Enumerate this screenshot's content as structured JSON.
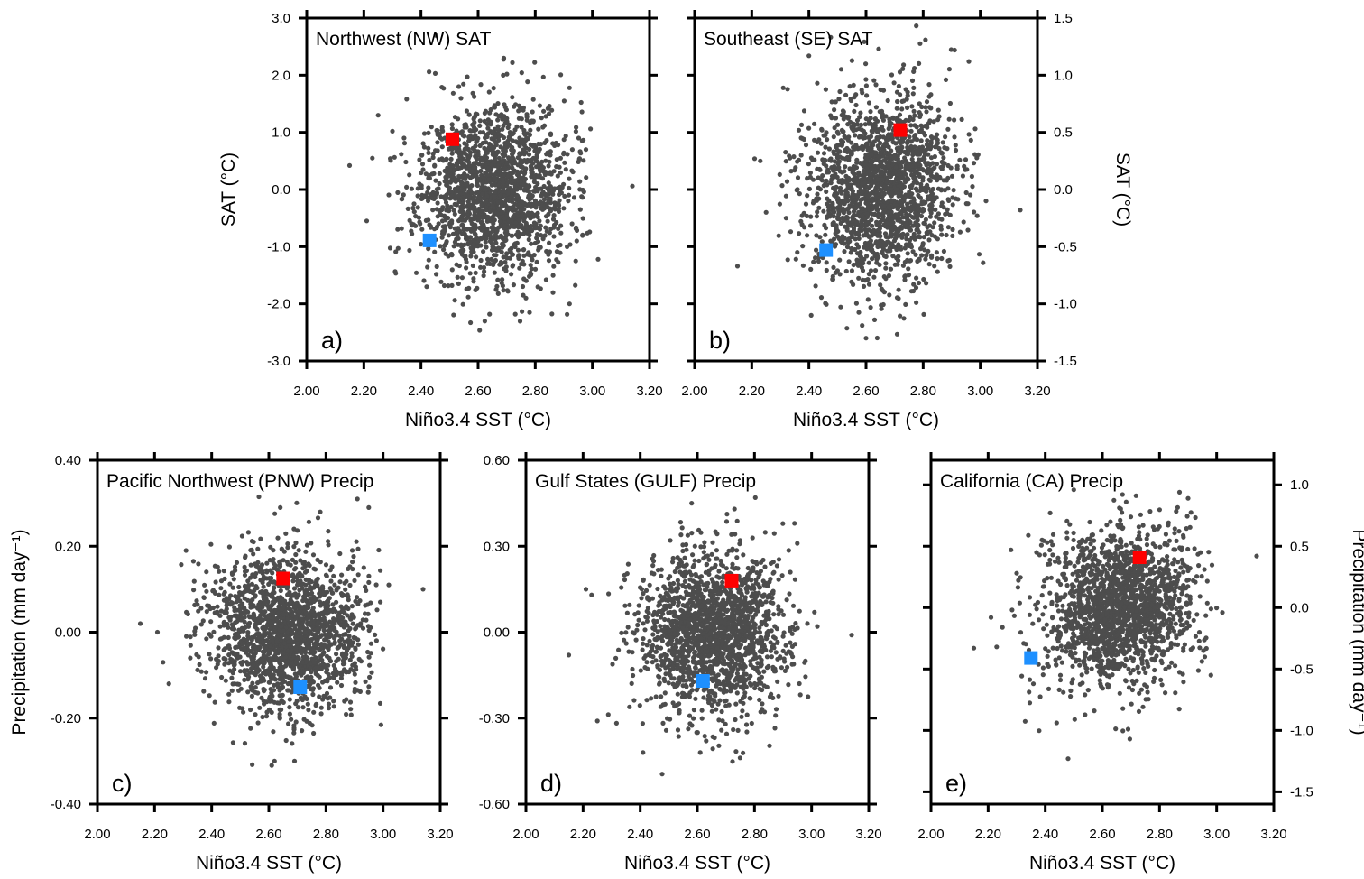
{
  "figure": {
    "description": "Scatter plots of seasonal anomalies vs Niño3.4 SST with two highlighted members",
    "highlight_colors": {
      "red": "#ff0000",
      "blue": "#1e90ff"
    },
    "point_color": "#4d4d4d"
  },
  "chart_data": [
    {
      "id": "a",
      "type": "scatter",
      "title": "Northwest (NW) SAT",
      "panel_letter": "a)",
      "xlabel": "Niño3.4 SST (°C)",
      "ylabel": "SAT (°C)",
      "ylabel_side": "left",
      "xlim": [
        2.0,
        3.2
      ],
      "ylim": [
        -3.0,
        3.0
      ],
      "xticks": [
        "2.00",
        "2.20",
        "2.40",
        "2.60",
        "2.80",
        "3.00",
        "3.20"
      ],
      "yticks": [
        {
          "v": 3.0,
          "label": "3.0"
        },
        {
          "v": 2.0,
          "label": "2.0"
        },
        {
          "v": 1.0,
          "label": "1.0"
        },
        {
          "v": 0.0,
          "label": "0.0"
        },
        {
          "v": -1.0,
          "label": "-1.0"
        },
        {
          "v": -2.0,
          "label": "-2.0"
        },
        {
          "v": -3.0,
          "label": "-3.0"
        }
      ],
      "cloud": {
        "n": 1800,
        "x_mean": 2.66,
        "x_sd": 0.13,
        "y_mean": -0.05,
        "y_sd": 0.75,
        "corr": 0.05,
        "seed": 11
      },
      "outliers": [
        [
          2.15,
          0.42
        ],
        [
          2.21,
          -0.55
        ],
        [
          2.23,
          0.55
        ],
        [
          2.25,
          1.3
        ],
        [
          2.3,
          1.02
        ],
        [
          2.32,
          -1.03
        ],
        [
          2.35,
          1.58
        ],
        [
          3.14,
          0.06
        ],
        [
          3.02,
          -1.22
        ],
        [
          2.92,
          -2.0
        ],
        [
          2.64,
          -2.18
        ],
        [
          2.73,
          -2.18
        ],
        [
          2.78,
          -2.15
        ],
        [
          2.69,
          2.3
        ],
        [
          2.72,
          2.22
        ],
        [
          2.45,
          2.03
        ],
        [
          2.42,
          -1.7
        ],
        [
          2.92,
          1.78
        ]
      ],
      "highlights": [
        {
          "name": "red-member",
          "color": "red",
          "x": 2.51,
          "y": 0.88
        },
        {
          "name": "blue-member",
          "color": "blue",
          "x": 2.43,
          "y": -0.89
        }
      ]
    },
    {
      "id": "b",
      "type": "scatter",
      "title": "Southeast (SE) SAT",
      "panel_letter": "b)",
      "xlabel": "Niño3.4 SST (°C)",
      "ylabel": "SAT (°C)",
      "ylabel_side": "right",
      "xlim": [
        2.0,
        3.2
      ],
      "ylim": [
        -1.5,
        1.5
      ],
      "xticks": [
        "2.00",
        "2.20",
        "2.40",
        "2.60",
        "2.80",
        "3.00",
        "3.20"
      ],
      "yticks": [
        {
          "v": 1.5,
          "label": "1.5"
        },
        {
          "v": 1.0,
          "label": "1.0"
        },
        {
          "v": 0.5,
          "label": "0.5"
        },
        {
          "v": 0.0,
          "label": "0.0"
        },
        {
          "v": -0.5,
          "label": "-0.5"
        },
        {
          "v": -1.0,
          "label": "-1.0"
        },
        {
          "v": -1.5,
          "label": "-1.5"
        }
      ],
      "cloud": {
        "n": 1800,
        "x_mean": 2.65,
        "x_sd": 0.13,
        "y_mean": 0.0,
        "y_sd": 0.4,
        "corr": 0.02,
        "seed": 23
      },
      "outliers": [
        [
          2.15,
          -0.67
        ],
        [
          2.21,
          0.27
        ],
        [
          2.23,
          0.25
        ],
        [
          2.25,
          -0.2
        ],
        [
          3.14,
          -0.18
        ],
        [
          3.01,
          -0.64
        ],
        [
          3.02,
          -0.1
        ],
        [
          2.6,
          -1.3
        ],
        [
          2.63,
          -1.14
        ],
        [
          2.91,
          1.22
        ],
        [
          2.96,
          1.12
        ],
        [
          2.4,
          1.17
        ],
        [
          2.31,
          0.89
        ]
      ],
      "highlights": [
        {
          "name": "red-member",
          "color": "red",
          "x": 2.72,
          "y": 0.52
        },
        {
          "name": "blue-member",
          "color": "blue",
          "x": 2.46,
          "y": -0.53
        }
      ]
    },
    {
      "id": "c",
      "type": "scatter",
      "title": "Pacific Northwest (PNW) Precip",
      "panel_letter": "c)",
      "xlabel": "Niño3.4 SST (°C)",
      "ylabel": "Precipitation (mm day⁻¹)",
      "ylabel_side": "left",
      "xlim": [
        2.0,
        3.2
      ],
      "ylim": [
        -0.4,
        0.4
      ],
      "xticks": [
        "2.00",
        "2.20",
        "2.40",
        "2.60",
        "2.80",
        "3.00",
        "3.20"
      ],
      "yticks": [
        {
          "v": 0.4,
          "label": "0.40"
        },
        {
          "v": 0.2,
          "label": "0.20"
        },
        {
          "v": 0.0,
          "label": "0.00"
        },
        {
          "v": -0.2,
          "label": "-0.20"
        },
        {
          "v": -0.4,
          "label": "-0.40"
        }
      ],
      "cloud": {
        "n": 1800,
        "x_mean": 2.66,
        "x_sd": 0.13,
        "y_mean": 0.0,
        "y_sd": 0.09,
        "corr": -0.05,
        "seed": 37
      },
      "outliers": [
        [
          2.15,
          0.02
        ],
        [
          2.21,
          0.0
        ],
        [
          2.23,
          -0.07
        ],
        [
          2.25,
          -0.12
        ],
        [
          3.14,
          0.1
        ],
        [
          3.02,
          0.11
        ],
        [
          2.91,
          0.31
        ],
        [
          2.95,
          0.29
        ],
        [
          2.61,
          -0.31
        ],
        [
          2.62,
          -0.3
        ],
        [
          2.69,
          -0.3
        ],
        [
          2.64,
          0.29
        ],
        [
          2.78,
          0.28
        ],
        [
          2.31,
          0.19
        ]
      ],
      "highlights": [
        {
          "name": "red-member",
          "color": "red",
          "x": 2.65,
          "y": 0.125
        },
        {
          "name": "blue-member",
          "color": "blue",
          "x": 2.71,
          "y": -0.128
        }
      ]
    },
    {
      "id": "d",
      "type": "scatter",
      "title": "Gulf States (GULF) Precip",
      "panel_letter": "d)",
      "xlabel": "Niño3.4 SST (°C)",
      "ylabel": "",
      "ylabel_side": "left",
      "xlim": [
        2.0,
        3.2
      ],
      "ylim": [
        -0.6,
        0.6
      ],
      "xticks": [
        "2.00",
        "2.20",
        "2.40",
        "2.60",
        "2.80",
        "3.00",
        "3.20"
      ],
      "yticks": [
        {
          "v": 0.6,
          "label": "0.60"
        },
        {
          "v": 0.3,
          "label": "0.30"
        },
        {
          "v": 0.0,
          "label": "0.00"
        },
        {
          "v": -0.3,
          "label": "-0.30"
        },
        {
          "v": -0.6,
          "label": "-0.60"
        }
      ],
      "cloud": {
        "n": 1800,
        "x_mean": 2.66,
        "x_sd": 0.13,
        "y_mean": 0.0,
        "y_sd": 0.14,
        "corr": 0.05,
        "seed": 53
      },
      "outliers": [
        [
          2.15,
          -0.08
        ],
        [
          2.21,
          0.15
        ],
        [
          2.23,
          0.13
        ],
        [
          2.25,
          -0.31
        ],
        [
          3.14,
          -0.01
        ],
        [
          3.02,
          0.02
        ],
        [
          3.01,
          0.07
        ],
        [
          2.41,
          -0.42
        ],
        [
          2.61,
          -0.42
        ],
        [
          2.58,
          0.45
        ],
        [
          2.73,
          0.43
        ],
        [
          2.94,
          0.38
        ],
        [
          2.95,
          0.31
        ]
      ],
      "highlights": [
        {
          "name": "red-member",
          "color": "red",
          "x": 2.72,
          "y": 0.18
        },
        {
          "name": "blue-member",
          "color": "blue",
          "x": 2.62,
          "y": -0.17
        }
      ]
    },
    {
      "id": "e",
      "type": "scatter",
      "title": "California (CA) Precip",
      "panel_letter": "e)",
      "xlabel": "Niño3.4 SST (°C)",
      "ylabel": "Precipitation (mm day⁻¹)",
      "ylabel_side": "right",
      "xlim": [
        2.0,
        3.2
      ],
      "ylim": [
        -1.6,
        1.2
      ],
      "xticks": [
        "2.00",
        "2.20",
        "2.40",
        "2.60",
        "2.80",
        "3.00",
        "3.20"
      ],
      "yticks": [
        {
          "v": 1.0,
          "label": "1.0"
        },
        {
          "v": 0.5,
          "label": "0.5"
        },
        {
          "v": 0.0,
          "label": "0.0"
        },
        {
          "v": -0.5,
          "label": "-0.5"
        },
        {
          "v": -1.0,
          "label": "-1.0"
        },
        {
          "v": -1.5,
          "label": "-1.5"
        }
      ],
      "cloud": {
        "n": 1800,
        "x_mean": 2.66,
        "x_sd": 0.13,
        "y_mean": 0.0,
        "y_sd": 0.32,
        "corr": 0.1,
        "seed": 71
      },
      "outliers": [
        [
          2.15,
          -0.33
        ],
        [
          2.21,
          -0.08
        ],
        [
          2.23,
          -0.32
        ],
        [
          2.25,
          -0.16
        ],
        [
          2.28,
          0.47
        ],
        [
          2.3,
          0.28
        ],
        [
          3.14,
          0.42
        ],
        [
          3.02,
          -0.04
        ],
        [
          2.98,
          -0.55
        ],
        [
          2.48,
          -1.23
        ],
        [
          2.69,
          -0.99
        ],
        [
          2.87,
          0.94
        ],
        [
          2.9,
          0.89
        ],
        [
          2.5,
          0.96
        ]
      ],
      "highlights": [
        {
          "name": "red-member",
          "color": "red",
          "x": 2.73,
          "y": 0.41
        },
        {
          "name": "blue-member",
          "color": "blue",
          "x": 2.35,
          "y": -0.41
        }
      ]
    }
  ]
}
